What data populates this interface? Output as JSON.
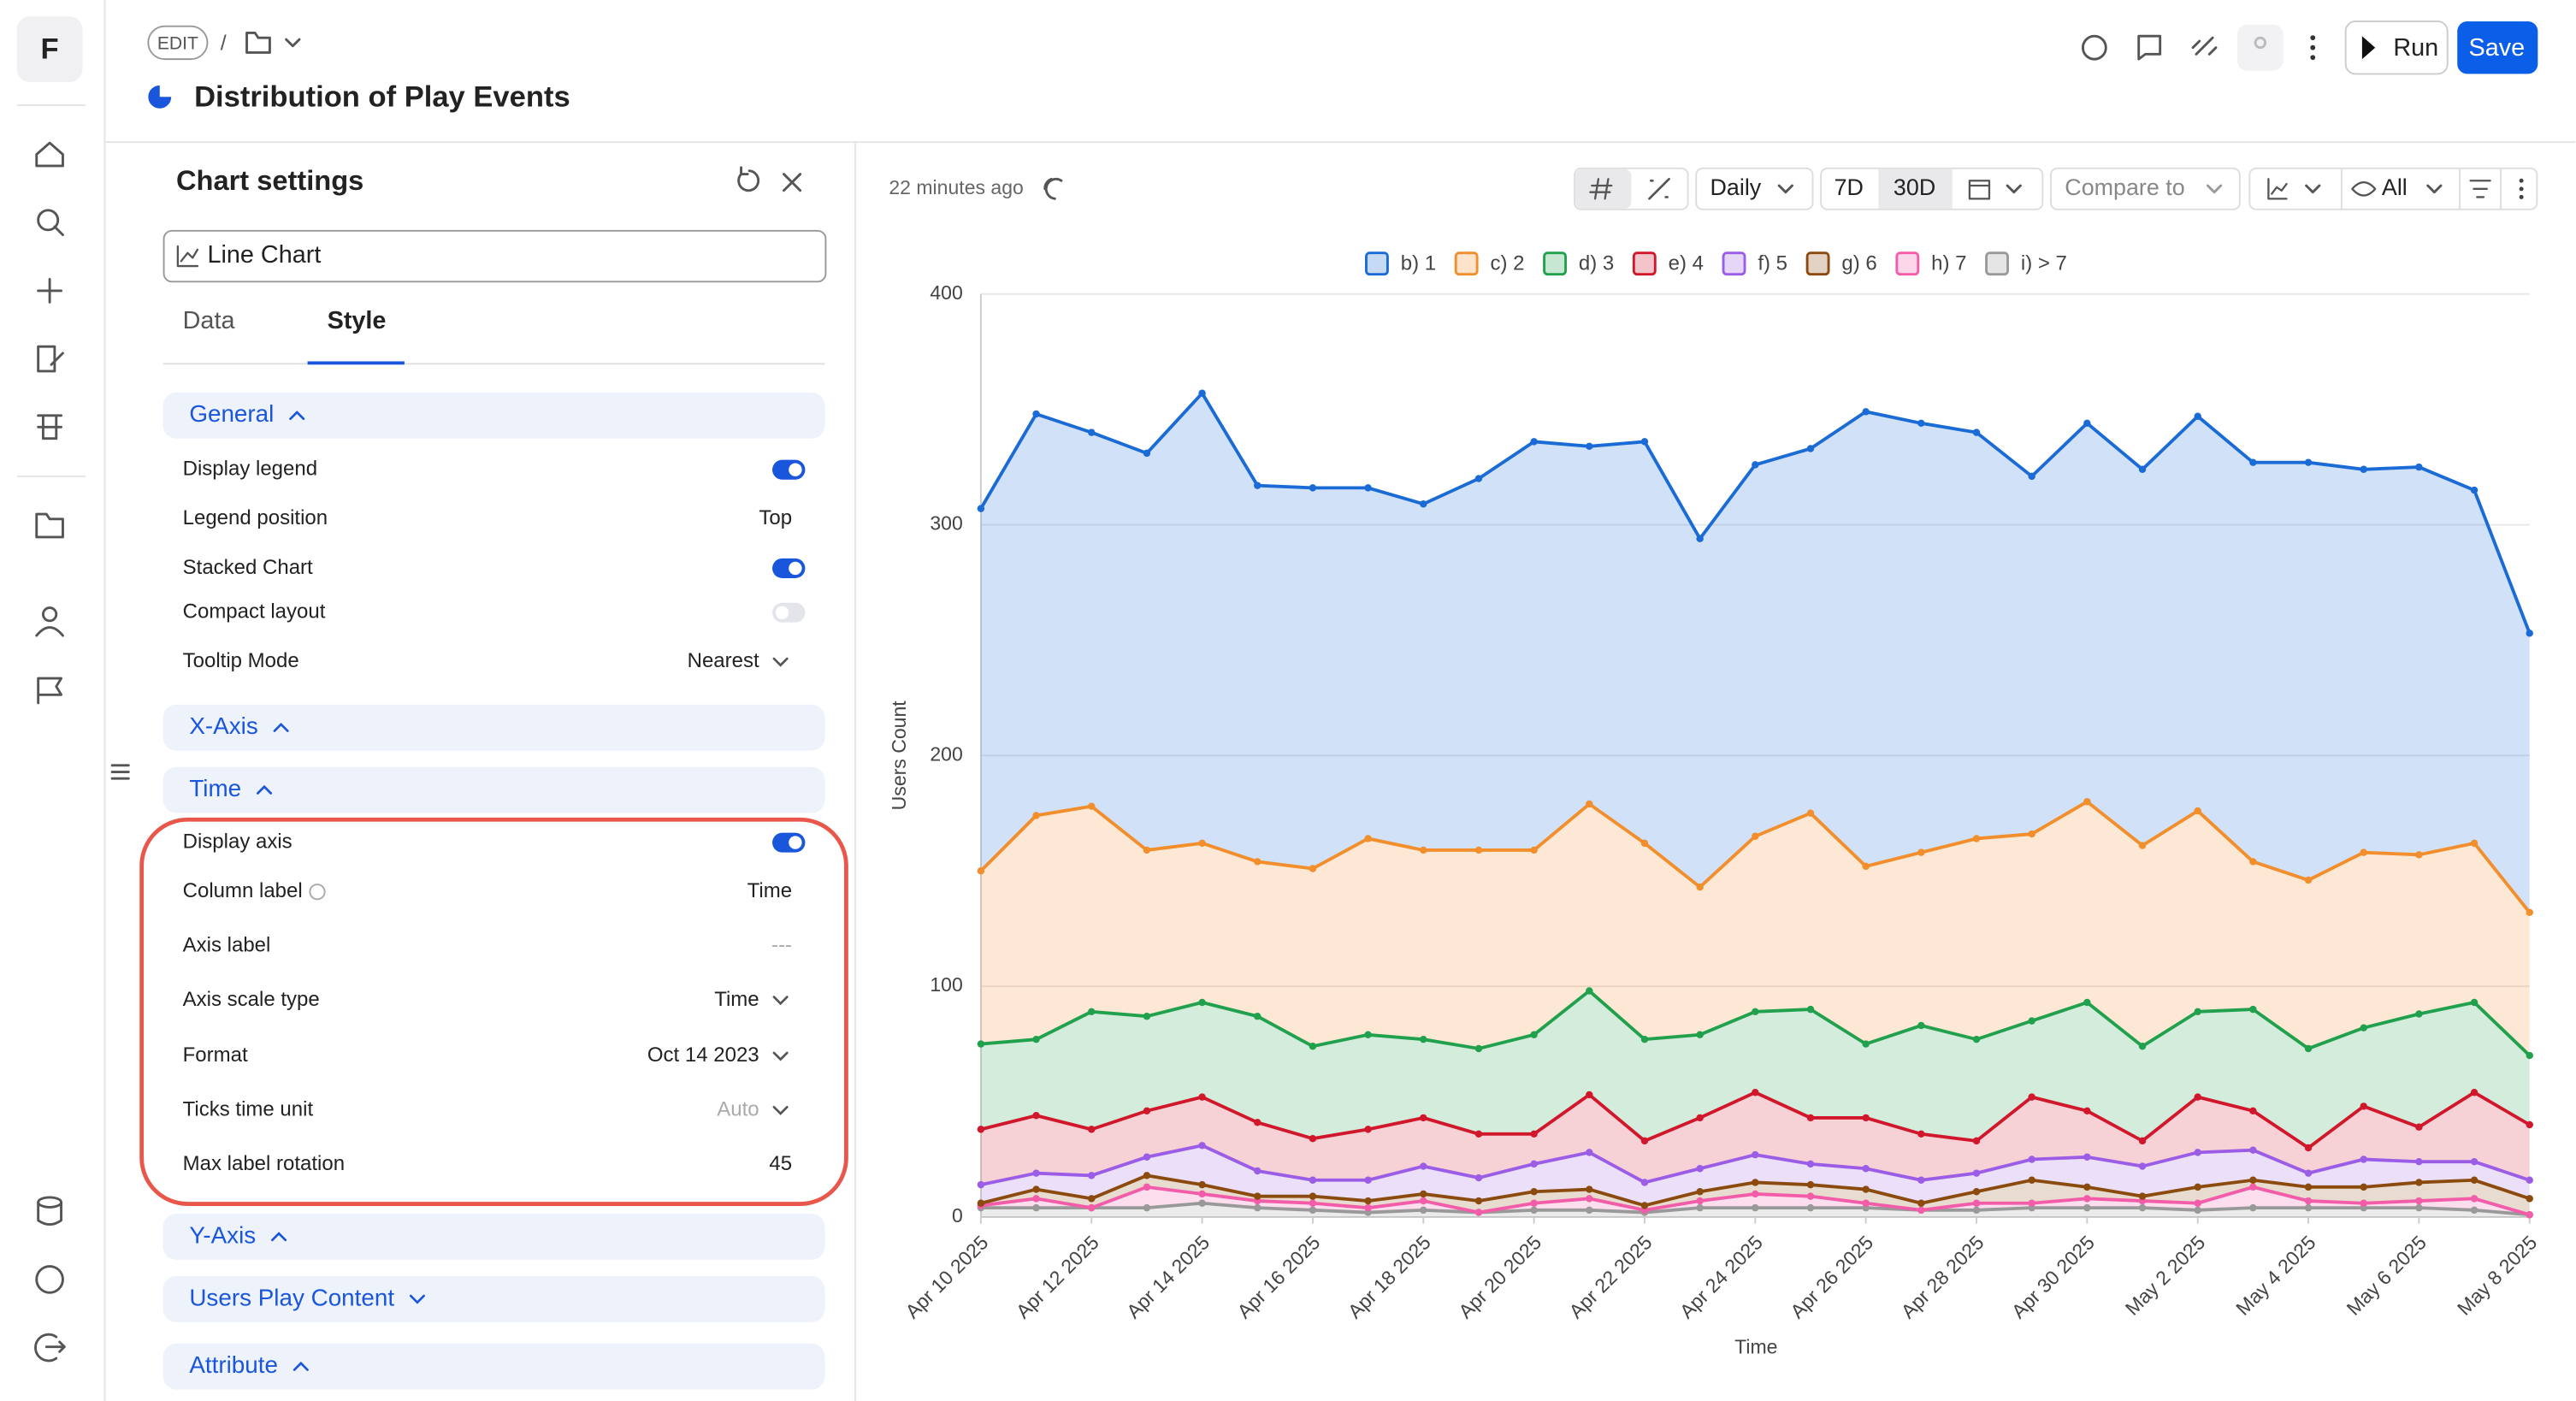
{
  "app": {
    "logo": "F"
  },
  "header": {
    "edit": "EDIT",
    "separator": "/",
    "title": "Distribution of Play Events",
    "run": "Run",
    "save": "Save"
  },
  "settings": {
    "title": "Chart settings",
    "chart_type": "Line Chart",
    "tabs": [
      "Data",
      "Style"
    ],
    "active_tab": 1,
    "sections": [
      {
        "title": "General",
        "expanded": true,
        "rows": [
          {
            "label": "Display legend",
            "toggle": true
          },
          {
            "label": "Legend position",
            "value": "Top"
          },
          {
            "label": "Stacked Chart",
            "toggle": true
          },
          {
            "label": "Compact layout",
            "toggle": false
          },
          {
            "label": "Tooltip Mode",
            "value": "Nearest",
            "dropdown": true
          }
        ]
      },
      {
        "title": "X-Axis",
        "expanded": true,
        "rows": []
      },
      {
        "title": "Time",
        "expanded": true,
        "rows": [
          {
            "label": "Display axis",
            "toggle": true
          },
          {
            "label": "Column label",
            "value": "Time",
            "info": true
          },
          {
            "label": "Axis label",
            "value": "---",
            "muted": true
          },
          {
            "label": "Axis scale type",
            "value": "Time",
            "dropdown": true
          },
          {
            "label": "Format",
            "value": "Oct 14 2023",
            "dropdown": true
          },
          {
            "label": "Ticks time unit",
            "value": "Auto",
            "dropdown": true,
            "muted": true
          },
          {
            "label": "Max label rotation",
            "value": "45"
          }
        ]
      },
      {
        "title": "Y-Axis",
        "expanded": true,
        "rows": []
      },
      {
        "title": "Users Play Content",
        "expanded": false,
        "rows": []
      },
      {
        "title": "Attribute",
        "expanded": true,
        "rows": []
      }
    ]
  },
  "chart_toolbar": {
    "updated": "22 minutes ago",
    "granularity": "Daily",
    "ranges": [
      "7D",
      "30D"
    ],
    "active_range": 1,
    "compare": "Compare to",
    "visibility": "All"
  },
  "chart_data": {
    "type": "area",
    "stacked": true,
    "grid": true,
    "legend": "top",
    "xlabel": "Time",
    "ylabel": "Users Count",
    "ylim": [
      0,
      400
    ],
    "yticks": [
      0,
      100,
      200,
      300,
      400
    ],
    "xlim": [
      "2025-04-10",
      "2025-05-08"
    ],
    "xticks": [
      {
        "value": "2025-04-10",
        "label": "Apr 10 2025"
      },
      {
        "value": "2025-04-12",
        "label": "Apr 12 2025"
      },
      {
        "value": "2025-04-14",
        "label": "Apr 14 2025"
      },
      {
        "value": "2025-04-16",
        "label": "Apr 16 2025"
      },
      {
        "value": "2025-04-18",
        "label": "Apr 18 2025"
      },
      {
        "value": "2025-04-20",
        "label": "Apr 20 2025"
      },
      {
        "value": "2025-04-22",
        "label": "Apr 22 2025"
      },
      {
        "value": "2025-04-24",
        "label": "Apr 24 2025"
      },
      {
        "value": "2025-04-26",
        "label": "Apr 26 2025"
      },
      {
        "value": "2025-04-28",
        "label": "Apr 28 2025"
      },
      {
        "value": "2025-04-30",
        "label": "Apr 30 2025"
      },
      {
        "value": "2025-05-02",
        "label": "May 2 2025"
      },
      {
        "value": "2025-05-04",
        "label": "May 4 2025"
      },
      {
        "value": "2025-05-06",
        "label": "May 6 2025"
      },
      {
        "value": "2025-05-08",
        "label": "May 8 2025"
      }
    ],
    "x": [
      "2025-04-10",
      "2025-04-11",
      "2025-04-12",
      "2025-04-13",
      "2025-04-14",
      "2025-04-15",
      "2025-04-16",
      "2025-04-17",
      "2025-04-18",
      "2025-04-19",
      "2025-04-20",
      "2025-04-21",
      "2025-04-22",
      "2025-04-23",
      "2025-04-24",
      "2025-04-25",
      "2025-04-26",
      "2025-04-27",
      "2025-04-28",
      "2025-04-29",
      "2025-04-30",
      "2025-05-01",
      "2025-05-02",
      "2025-05-03",
      "2025-05-04",
      "2025-05-05",
      "2025-05-06",
      "2025-05-07",
      "2025-05-08"
    ],
    "series": [
      {
        "name": "b) 1",
        "color": "#1a6bd6",
        "values": [
          157,
          174,
          162,
          172,
          195,
          163,
          165,
          152,
          150,
          161,
          177,
          155,
          174,
          151,
          161,
          158,
          197,
          186,
          176,
          155,
          164,
          163,
          171,
          173,
          181,
          166,
          168,
          153,
          121
        ]
      },
      {
        "name": "c) 2",
        "color": "#f28e2b",
        "values": [
          75,
          97,
          89,
          72,
          69,
          67,
          77,
          85,
          82,
          86,
          80,
          81,
          85,
          64,
          76,
          85,
          77,
          75,
          87,
          81,
          87,
          87,
          87,
          64,
          73,
          76,
          69,
          69,
          62
        ]
      },
      {
        "name": "d) 3",
        "color": "#21a04d",
        "values": [
          37,
          33,
          51,
          41,
          41,
          46,
          40,
          41,
          34,
          37,
          43,
          45,
          44,
          36,
          35,
          47,
          32,
          47,
          44,
          33,
          47,
          41,
          37,
          44,
          43,
          34,
          49,
          39,
          30
        ]
      },
      {
        "name": "e) 4",
        "color": "#d1172b",
        "values": [
          24,
          25,
          20,
          20,
          21,
          21,
          18,
          22,
          21,
          19,
          13,
          25,
          18,
          22,
          27,
          20,
          22,
          20,
          14,
          27,
          20,
          11,
          24,
          17,
          11,
          23,
          15,
          30,
          24
        ]
      },
      {
        "name": "f) 5",
        "color": "#9b5de5",
        "values": [
          8,
          7,
          10,
          8,
          17,
          11,
          7,
          9,
          12,
          10,
          12,
          16,
          10,
          10,
          12,
          9,
          9,
          10,
          8,
          9,
          13,
          13,
          15,
          13,
          6,
          12,
          9,
          8,
          8
        ]
      },
      {
        "name": "g) 6",
        "color": "#8b4b0f",
        "values": [
          1,
          4,
          4,
          5,
          4,
          2,
          3,
          3,
          3,
          5,
          5,
          4,
          2,
          4,
          5,
          5,
          6,
          3,
          5,
          10,
          5,
          2,
          7,
          3,
          6,
          7,
          8,
          8,
          7
        ]
      },
      {
        "name": "h) 7",
        "color": "#f25ca8",
        "values": [
          1,
          4,
          0,
          9,
          4,
          3,
          3,
          2,
          4,
          0,
          3,
          5,
          1,
          3,
          6,
          5,
          2,
          0,
          3,
          2,
          4,
          3,
          3,
          9,
          3,
          2,
          3,
          5,
          0
        ]
      },
      {
        "name": "i) > 7",
        "color": "#999999",
        "values": [
          4,
          4,
          4,
          4,
          6,
          4,
          3,
          2,
          3,
          2,
          3,
          3,
          2,
          4,
          4,
          4,
          4,
          3,
          3,
          4,
          4,
          4,
          3,
          4,
          4,
          4,
          4,
          3,
          1
        ]
      }
    ]
  }
}
